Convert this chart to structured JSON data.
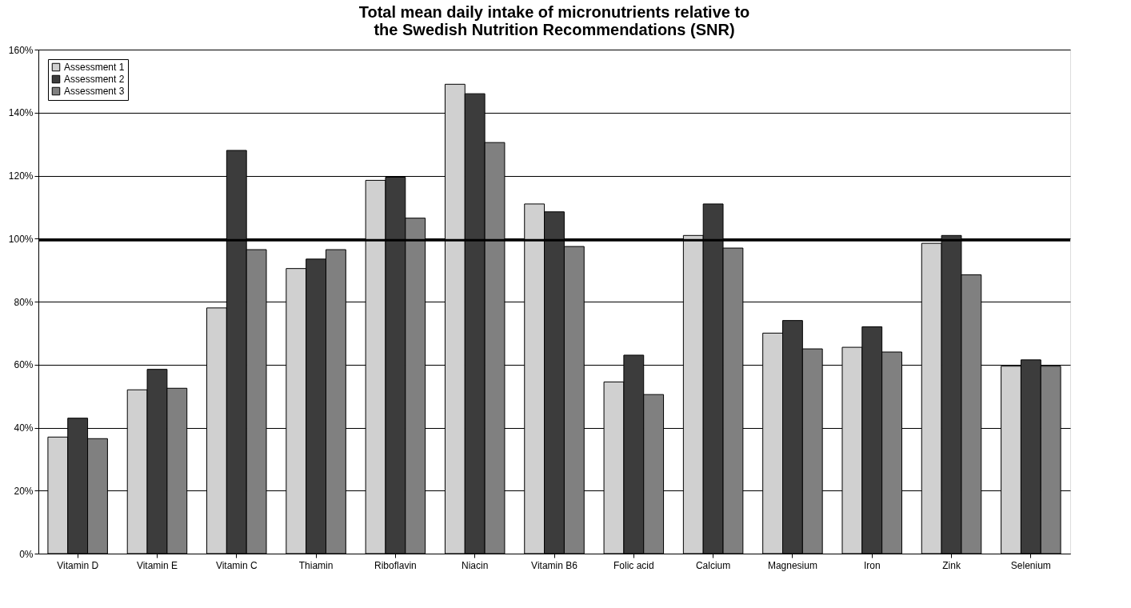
{
  "chart_data": {
    "type": "bar",
    "title": "Total mean daily intake of micronutrients relative to\nthe Swedish Nutrition Recommendations (SNR)",
    "categories": [
      "Vitamin D",
      "Vitamin E",
      "Vitamin C",
      "Thiamin",
      "Riboflavin",
      "Niacin",
      "Vitamin B6",
      "Folic acid",
      "Calcium",
      "Magnesium",
      "Iron",
      "Zink",
      "Selenium"
    ],
    "series": [
      {
        "name": "Assessment 1",
        "color": "#d0d0d0",
        "values": [
          37,
          52,
          78,
          90.5,
          118.5,
          149,
          111,
          54.5,
          101,
          70,
          65.5,
          98.5,
          59.5
        ]
      },
      {
        "name": "Assessment 2",
        "color": "#3c3c3c",
        "values": [
          43,
          58.5,
          128,
          93.5,
          119.5,
          146,
          108.5,
          63,
          111,
          74,
          72,
          101,
          61.5
        ]
      },
      {
        "name": "Assessment 3",
        "color": "#808080",
        "values": [
          36.5,
          52.5,
          96.5,
          96.5,
          106.5,
          130.5,
          97.5,
          50.5,
          97,
          65,
          64,
          88.5,
          59.5
        ]
      }
    ],
    "ylim": [
      0,
      160
    ],
    "yticks": [
      {
        "value": 0,
        "label": "0%"
      },
      {
        "value": 20,
        "label": "20%"
      },
      {
        "value": 40,
        "label": "40%"
      },
      {
        "value": 60,
        "label": "60%"
      },
      {
        "value": 80,
        "label": "80%"
      },
      {
        "value": 100,
        "label": "100%"
      },
      {
        "value": 120,
        "label": "120%"
      },
      {
        "value": 140,
        "label": "140%"
      },
      {
        "value": 160,
        "label": "160%"
      }
    ],
    "ref_lines": [
      {
        "axis": "y",
        "value": 99.5,
        "color": "#000000"
      }
    ],
    "grid": "y",
    "legend": "top left"
  }
}
